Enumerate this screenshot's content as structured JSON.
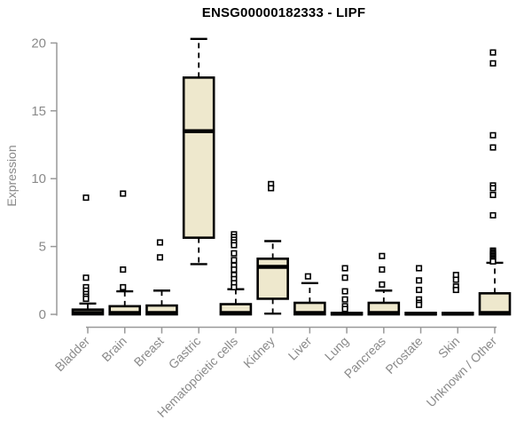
{
  "chart_data": {
    "type": "boxplot",
    "title": "ENSG00000182333 - LIPF",
    "ylabel": "Expression",
    "xlabel": "",
    "ylim": [
      0,
      20
    ],
    "yticks": [
      "0",
      "5",
      "10",
      "15",
      "20"
    ],
    "grid": false,
    "legend": false,
    "categories": [
      "Bladder",
      "Brain",
      "Breast",
      "Gastric",
      "Hematopoietic cells",
      "Kidney",
      "Liver",
      "Lung",
      "Pancreas",
      "Prostate",
      "Skin",
      "Unknown / Other"
    ],
    "boxes": [
      {
        "category": "Bladder",
        "whisker_low": 0,
        "q1": 0,
        "median": 0.1,
        "q3": 0.35,
        "whisker_high": 0.8,
        "outliers": [
          8.6,
          2.7,
          2.0,
          1.75,
          1.5,
          1.3,
          1.15
        ]
      },
      {
        "category": "Brain",
        "whisker_low": 0,
        "q1": 0,
        "median": 0.1,
        "q3": 0.6,
        "whisker_high": 1.7,
        "outliers": [
          8.9,
          3.3,
          2.0
        ]
      },
      {
        "category": "Breast",
        "whisker_low": 0,
        "q1": 0,
        "median": 0.1,
        "q3": 0.65,
        "whisker_high": 1.75,
        "outliers": [
          5.3,
          4.2
        ]
      },
      {
        "category": "Gastric",
        "whisker_low": 3.7,
        "q1": 5.65,
        "median": 13.5,
        "q3": 17.45,
        "whisker_high": 20.3,
        "outliers": []
      },
      {
        "category": "Hematopoietic cells",
        "whisker_low": 0,
        "q1": 0,
        "median": 0.1,
        "q3": 0.75,
        "whisker_high": 1.85,
        "outliers": [
          5.9,
          5.7,
          5.5,
          5.3,
          5.1,
          4.5,
          4.0,
          3.6,
          3.3,
          2.9,
          2.6,
          2.3,
          2.0
        ]
      },
      {
        "category": "Kidney",
        "whisker_low": 0.05,
        "q1": 1.15,
        "median": 3.5,
        "q3": 4.1,
        "whisker_high": 5.4,
        "outliers": [
          9.6,
          9.3
        ]
      },
      {
        "category": "Liver",
        "whisker_low": 0,
        "q1": 0,
        "median": 0.1,
        "q3": 0.85,
        "whisker_high": 2.3,
        "outliers": [
          2.8
        ]
      },
      {
        "category": "Lung",
        "whisker_low": 0,
        "q1": 0,
        "median": 0.05,
        "q3": 0.1,
        "whisker_high": 0.1,
        "outliers": [
          3.4,
          2.7,
          1.7,
          1.1,
          0.6,
          0.4
        ]
      },
      {
        "category": "Pancreas",
        "whisker_low": 0,
        "q1": 0,
        "median": 0.1,
        "q3": 0.85,
        "whisker_high": 1.75,
        "outliers": [
          4.3,
          3.3,
          2.2
        ]
      },
      {
        "category": "Prostate",
        "whisker_low": 0,
        "q1": 0,
        "median": 0.05,
        "q3": 0.1,
        "whisker_high": 0.1,
        "outliers": [
          3.4,
          2.5,
          1.8,
          1.1,
          0.85,
          0.7
        ]
      },
      {
        "category": "Skin",
        "whisker_low": 0,
        "q1": 0,
        "median": 0.05,
        "q3": 0.1,
        "whisker_high": 0.1,
        "outliers": [
          2.9,
          2.55,
          2.05,
          1.8
        ]
      },
      {
        "category": "Unknown / Other",
        "whisker_low": 0,
        "q1": 0,
        "median": 0.1,
        "q3": 1.55,
        "whisker_high": 3.8,
        "outliers": [
          19.3,
          18.5,
          13.2,
          12.3,
          9.5,
          9.3,
          8.8,
          7.3,
          4.7,
          4.6,
          4.5,
          4.4,
          4.3,
          4.2,
          4.1,
          4.0,
          3.9
        ]
      }
    ],
    "colors": {
      "box_fill": "#EEE8CD",
      "box_stroke": "#000000",
      "axis": "#999999",
      "tick_text": "#8A8A8A",
      "title": "#000000",
      "background": "#FFFFFF"
    }
  }
}
